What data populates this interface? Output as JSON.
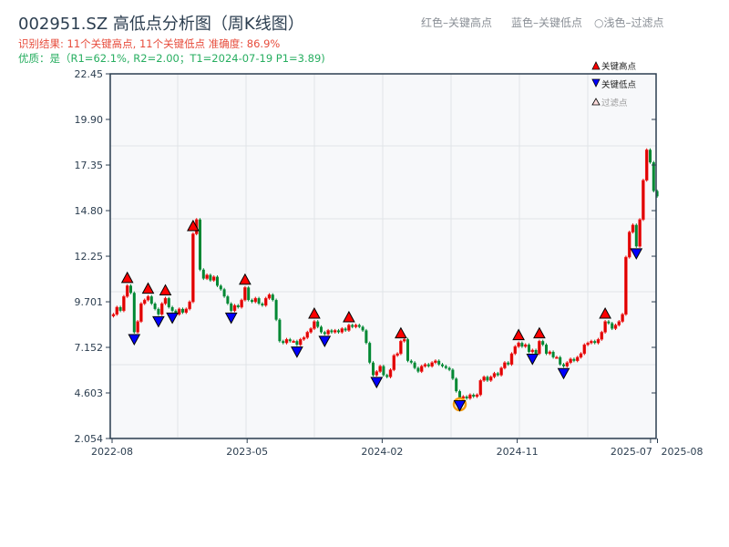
{
  "header": {
    "title": "002951.SZ 高低点分析图（周K线图）",
    "result_line": "识别结果: 11个关键高点, 11个关键低点  准确度: 86.9%",
    "quality_line": "优质：是（R1=62.1%, R2=2.00；T1=2024-07-19 P1=3.89)"
  },
  "top_legend": {
    "red": "红色–关键高点",
    "blue": "蓝色–关键低点",
    "light": "○浅色–过滤点"
  },
  "chart_data": {
    "type": "candlestick",
    "title": "002951.SZ 高低点分析图（周K线图）",
    "ylim": [
      2.054,
      22.45
    ],
    "y_ticks": [
      "22.45",
      "19.90",
      "17.35",
      "14.80",
      "12.25",
      "9.701",
      "7.152",
      "4.603",
      "2.054"
    ],
    "y_tick_values": [
      22.45,
      19.9,
      17.35,
      14.8,
      12.25,
      9.701,
      7.152,
      4.603,
      2.054
    ],
    "x_ticks": [
      {
        "label": "2022-08",
        "week": 0
      },
      {
        "label": "2023-05",
        "week": 39
      },
      {
        "label": "2024-02",
        "week": 78
      },
      {
        "label": "2024-11",
        "week": 117
      },
      {
        "label": "2025-07",
        "week": 155.5
      },
      {
        "label": "2025-08",
        "week": 157.5
      }
    ],
    "weeks": 158,
    "start_open": 8.9,
    "closes": [
      9.0,
      9.4,
      9.2,
      10.0,
      10.6,
      10.2,
      8.0,
      8.6,
      9.6,
      9.8,
      10.0,
      9.6,
      9.3,
      9.0,
      9.6,
      9.9,
      9.4,
      9.2,
      9.0,
      9.3,
      9.1,
      9.3,
      9.7,
      13.5,
      14.3,
      11.5,
      11.0,
      11.2,
      10.9,
      11.1,
      10.6,
      10.4,
      10.0,
      9.6,
      9.2,
      9.5,
      9.4,
      9.8,
      10.5,
      9.8,
      9.7,
      9.9,
      9.6,
      9.5,
      9.9,
      10.1,
      9.8,
      8.7,
      7.5,
      7.4,
      7.6,
      7.5,
      7.5,
      7.3,
      7.6,
      7.7,
      8.0,
      8.2,
      8.6,
      8.3,
      8.0,
      7.9,
      8.1,
      8.0,
      8.1,
      8.0,
      8.2,
      8.1,
      8.4,
      8.3,
      8.4,
      8.3,
      8.1,
      7.4,
      6.3,
      5.6,
      5.8,
      6.1,
      5.6,
      5.5,
      5.9,
      6.7,
      6.8,
      7.5,
      7.6,
      6.4,
      6.3,
      6.0,
      5.8,
      6.1,
      6.2,
      6.1,
      6.3,
      6.4,
      6.2,
      6.1,
      6.0,
      5.9,
      5.4,
      4.7,
      4.3,
      4.4,
      4.3,
      4.5,
      4.4,
      4.5,
      5.3,
      5.5,
      5.3,
      5.5,
      5.7,
      5.6,
      6.0,
      6.3,
      6.2,
      6.8,
      7.2,
      7.4,
      7.2,
      7.3,
      6.9,
      7.0,
      6.8,
      7.5,
      7.3,
      6.8,
      6.9,
      6.6,
      6.6,
      6.2,
      6.1,
      6.3,
      6.5,
      6.4,
      6.6,
      6.8,
      7.3,
      7.4,
      7.5,
      7.4,
      7.6,
      8.0,
      8.6,
      8.5,
      8.2,
      8.4,
      8.6,
      9.0,
      12.2,
      13.6,
      14.0,
      12.8,
      14.3,
      16.5,
      18.2,
      17.5,
      15.9,
      15.6
    ],
    "key_highs": [
      4,
      10,
      15,
      23,
      38,
      58,
      68,
      83,
      117,
      123,
      142
    ],
    "key_lows": [
      6,
      13,
      17,
      34,
      53,
      61,
      76,
      100,
      121,
      130,
      151
    ],
    "highlighted_low": 100,
    "legend": {
      "high": "关键高点",
      "low": "关键低点",
      "filtered": "过滤点"
    },
    "colors": {
      "up": "#dd0000",
      "down": "#008833",
      "high_marker": "#ff0000",
      "low_marker": "#0000ff",
      "highlight": "#f39c12",
      "grid": "#e1e4e8",
      "bg": "#f7f8fa",
      "axis": "#2c3e50"
    }
  }
}
